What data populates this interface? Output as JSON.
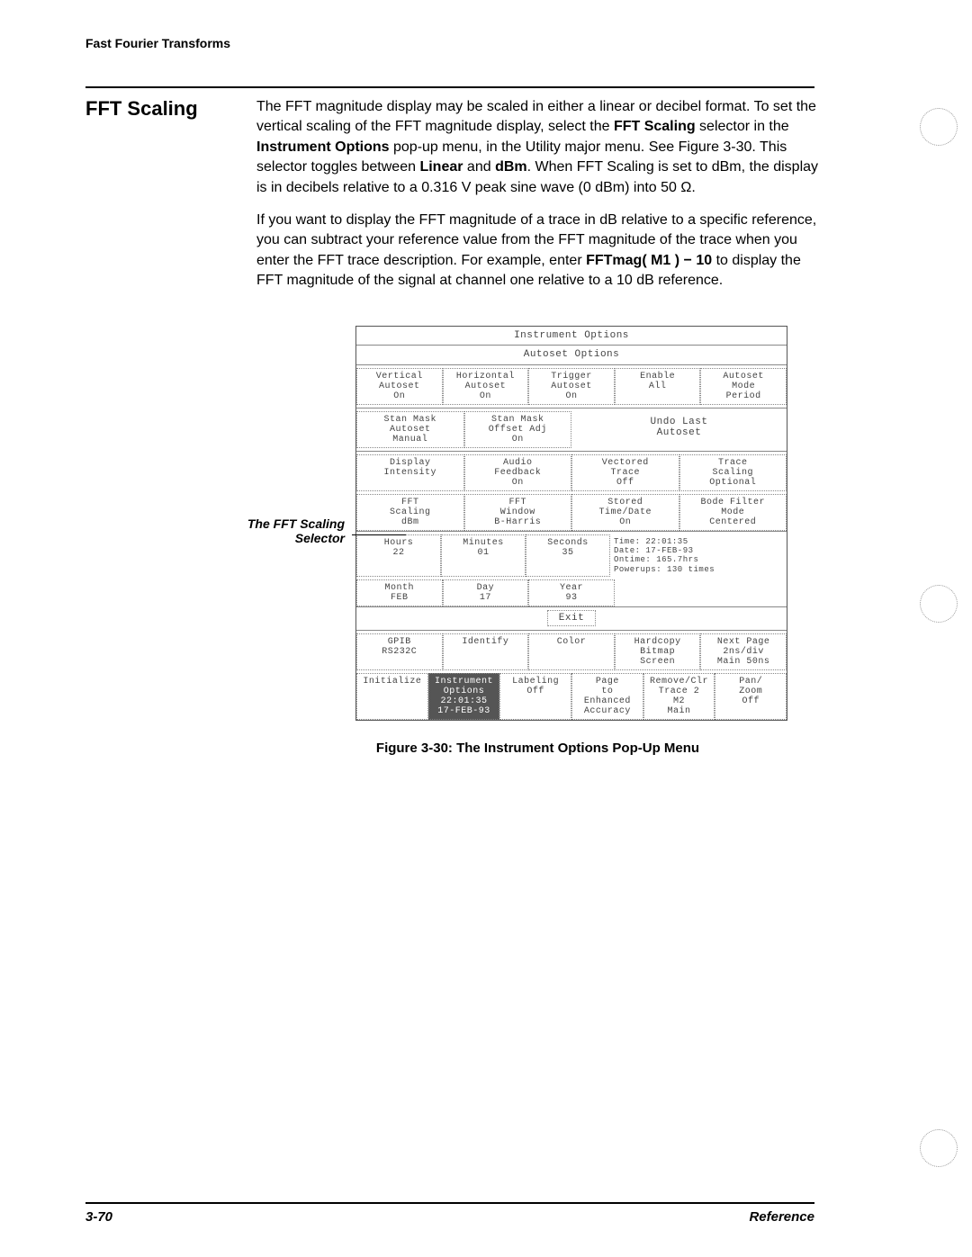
{
  "header": "Fast Fourier Transforms",
  "section_title": "FFT Scaling",
  "para1_pre": "The FFT magnitude display may be scaled in either a linear or decibel format. To set the vertical scaling of the FFT magnitude display, select the ",
  "bold1": "FFT Scaling",
  "para1_mid1": " selector in the ",
  "bold2": "Instrument Options",
  "para1_mid2": " pop-up menu, in the Utility major menu. See Figure 3-30. This selector toggles between ",
  "bold3": "Linear",
  "para1_mid3": " and ",
  "bold4": "dBm",
  "para1_end": ". When FFT Scaling is set to dBm, the display is in decibels relative to a 0.316 V peak sine wave (0 dBm) into 50 Ω.",
  "para2_pre": "If you want to display the FFT magnitude of a trace in dB relative to a specific reference, you can subtract your reference value from the FFT magnitude of the trace when you enter the FFT trace description. For example, enter ",
  "bold5": "FFTmag( M1 )  −  10",
  "para2_end": " to display the FFT magnitude of the signal at channel one relative to a 10 dB reference.",
  "callout_l1": "The FFT Scaling",
  "callout_l2": "Selector",
  "menu": {
    "title": "Instrument Options",
    "autoset_title": "Autoset Options",
    "row1": [
      {
        "t": "Vertical",
        "b": "Autoset",
        "c": "On"
      },
      {
        "t": "Horizontal",
        "b": "Autoset",
        "c": "On"
      },
      {
        "t": "Trigger",
        "b": "Autoset",
        "c": "On"
      },
      {
        "t": "Enable",
        "b": "All",
        "c": ""
      },
      {
        "t": "Autoset",
        "b": "Mode",
        "c": "Period"
      }
    ],
    "row2a": [
      {
        "t": "Stan Mask",
        "b": "Autoset",
        "c": "Manual"
      },
      {
        "t": "Stan Mask",
        "b": "Offset Adj",
        "c": "On"
      }
    ],
    "row2b": {
      "t": "Undo Last",
      "b": "Autoset"
    },
    "row3": [
      {
        "t": "Display",
        "b": "Intensity",
        "c": ""
      },
      {
        "t": "Audio",
        "b": "Feedback",
        "c": "On"
      },
      {
        "t": "Vectored",
        "b": "Trace",
        "c": "Off"
      },
      {
        "t": "Trace",
        "b": "Scaling",
        "c": "Optional"
      }
    ],
    "row4": [
      {
        "t": "FFT",
        "b": "Scaling",
        "c": "dBm"
      },
      {
        "t": "FFT",
        "b": "Window",
        "c": "B-Harris"
      },
      {
        "t": "Stored",
        "b": "Time/Date",
        "c": "On"
      },
      {
        "t": "Bode Filter",
        "b": "Mode",
        "c": "Centered"
      }
    ],
    "row5": [
      {
        "t": "Hours",
        "c": "22"
      },
      {
        "t": "Minutes",
        "c": "01"
      },
      {
        "t": "Seconds",
        "c": "35"
      }
    ],
    "row5_info": [
      "Time: 22:01:35",
      "Date: 17-FEB-93",
      "Ontime: 165.7hrs",
      "Powerups: 130 times"
    ],
    "row6": [
      {
        "t": "Month",
        "c": "FEB"
      },
      {
        "t": "Day",
        "c": "17"
      },
      {
        "t": "Year",
        "c": "93"
      }
    ],
    "exit": "Exit",
    "bottom1": [
      {
        "t": "GPIB",
        "b": "RS232C"
      },
      {
        "t": "Identify",
        "b": ""
      },
      {
        "t": "Color",
        "b": ""
      },
      {
        "t": "Hardcopy",
        "b": "Bitmap",
        "c": "Screen"
      },
      {
        "t": "Next Page",
        "b": "2ns/div",
        "c": "Main 50ns"
      }
    ],
    "bottom2": [
      {
        "t": "Initialize",
        "b": ""
      },
      {
        "t": "Instrument",
        "b": "Options",
        "c": "22:01:35",
        "d": "17-FEB-93",
        "hl": true
      },
      {
        "t": "Labeling",
        "b": "",
        "c": "Off"
      },
      {
        "t": "Page",
        "b": "to",
        "c": "Enhanced",
        "d": "Accuracy"
      },
      {
        "t": "Remove/Clr",
        "b": "Trace 2",
        "c": "M2",
        "d": "Main"
      },
      {
        "t": "Pan/",
        "b": "Zoom",
        "c": "Off"
      }
    ]
  },
  "caption": "Figure 3-30: The Instrument Options Pop-Up Menu",
  "page_num": "3-70",
  "ref": "Reference"
}
